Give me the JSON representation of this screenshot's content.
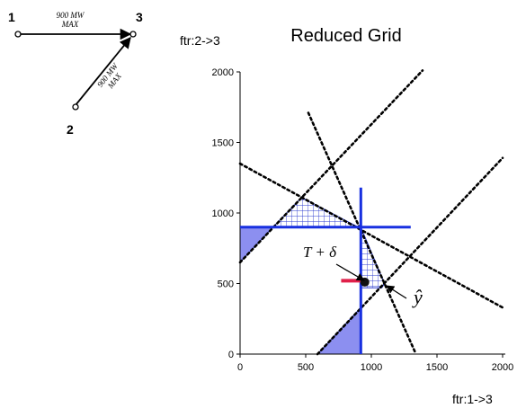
{
  "network": {
    "nodes": [
      {
        "id": "node-1",
        "label": "1"
      },
      {
        "id": "node-2",
        "label": "2"
      },
      {
        "id": "node-3",
        "label": "3"
      }
    ],
    "line_1_3": {
      "capacity": "900 MW",
      "unit": "MAX"
    },
    "line_2_3": {
      "capacity": "900 MW",
      "unit": "MAX"
    }
  },
  "chart": {
    "title": "Reduced Grid",
    "ylabel": "ftr:2->3",
    "xlabel": "ftr:1->3",
    "annotation_t_delta": "T + δ",
    "annotation_y_hat": "ŷ"
  },
  "chart_data": {
    "type": "scatter",
    "title": "Reduced Grid",
    "xlabel": "ftr:1->3",
    "ylabel": "ftr:2->3",
    "xlim": [
      0,
      2000
    ],
    "ylim": [
      0,
      2000
    ],
    "x_ticks": [
      0,
      500,
      1000,
      1500,
      2000
    ],
    "y_ticks": [
      0,
      500,
      1000,
      1500,
      2000
    ],
    "grid": false,
    "dotted_lines": [
      {
        "from": [
          0,
          650
        ],
        "to": [
          1390,
          2010
        ]
      },
      {
        "from": [
          0,
          1350
        ],
        "to": [
          2000,
          330
        ]
      },
      {
        "from": [
          520,
          1710
        ],
        "to": [
          1340,
          0
        ]
      },
      {
        "from": [
          590,
          0
        ],
        "to": [
          2000,
          1390
        ]
      }
    ],
    "blue_lines": [
      {
        "from": [
          0,
          900
        ],
        "to": [
          1300,
          900
        ]
      },
      {
        "from": [
          920,
          1180
        ],
        "to": [
          920,
          0
        ]
      }
    ],
    "shaded_regions": [
      {
        "name": "lower-left",
        "points": [
          [
            0,
            650
          ],
          [
            0,
            900
          ],
          [
            250,
            900
          ]
        ]
      },
      {
        "name": "bottom",
        "points": [
          [
            590,
            0
          ],
          [
            920,
            0
          ],
          [
            920,
            330
          ]
        ]
      }
    ],
    "hatched_regions": [
      {
        "name": "upper-triangle",
        "points": [
          [
            250,
            900
          ],
          [
            470,
            1110
          ],
          [
            900,
            900
          ]
        ]
      },
      {
        "name": "right-wedge",
        "points": [
          [
            920,
            900
          ],
          [
            920,
            470
          ],
          [
            1080,
            470
          ],
          [
            1100,
            500
          ]
        ]
      }
    ],
    "points": [
      {
        "x": 950,
        "y": 510
      }
    ],
    "arrow_segment": {
      "from": [
        770,
        520
      ],
      "to": [
        950,
        520
      ]
    }
  }
}
